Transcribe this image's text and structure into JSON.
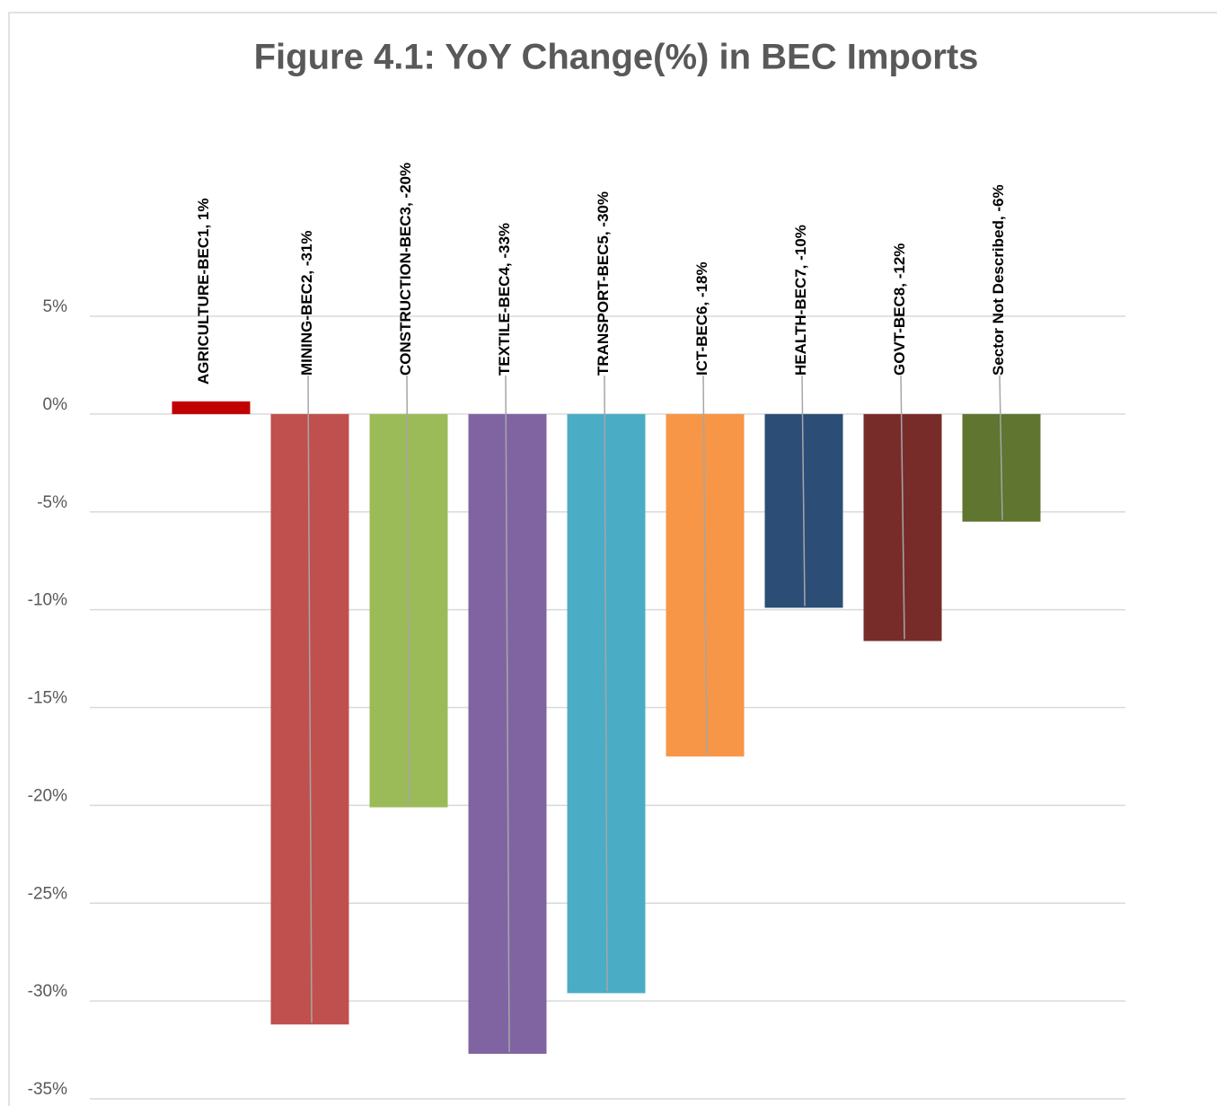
{
  "chart_data": {
    "type": "bar",
    "title": "Figure 4.1: YoY Change(%) in BEC Imports",
    "categories": [
      "AGRICULTURE-BEC1",
      "MINING-BEC2",
      "CONSTRUCTION-BEC3",
      "TEXTILE-BEC4",
      "TRANSPORT-BEC5",
      "ICT-BEC6",
      "HEALTH-BEC7",
      "GOVT-BEC8",
      "Sector Not Described"
    ],
    "values": [
      0.65,
      -31.2,
      -20.1,
      -32.7,
      -29.6,
      -17.5,
      -9.9,
      -11.6,
      -5.5
    ],
    "value_labels": [
      "1%",
      "-31%",
      "-20%",
      "-33%",
      "-30%",
      "-18%",
      "-10%",
      "-12%",
      "-6%"
    ],
    "data_label_separator": ", ",
    "colors": [
      "#c00000",
      "#c0504d",
      "#9bbb59",
      "#8064a2",
      "#4bacc6",
      "#f79646",
      "#2c4d75",
      "#772c2a",
      "#5f7530"
    ],
    "ylim": [
      -35,
      5
    ],
    "yticks": [
      {
        "value": 5,
        "label": "5%"
      },
      {
        "value": 0,
        "label": "0%"
      },
      {
        "value": -5,
        "label": "-5%"
      },
      {
        "value": -10,
        "label": "-10%"
      },
      {
        "value": -15,
        "label": "-15%"
      },
      {
        "value": -20,
        "label": "-20%"
      },
      {
        "value": -25,
        "label": "-25%"
      },
      {
        "value": -30,
        "label": "-30%"
      },
      {
        "value": -35,
        "label": "-35%"
      }
    ],
    "grid": true
  }
}
